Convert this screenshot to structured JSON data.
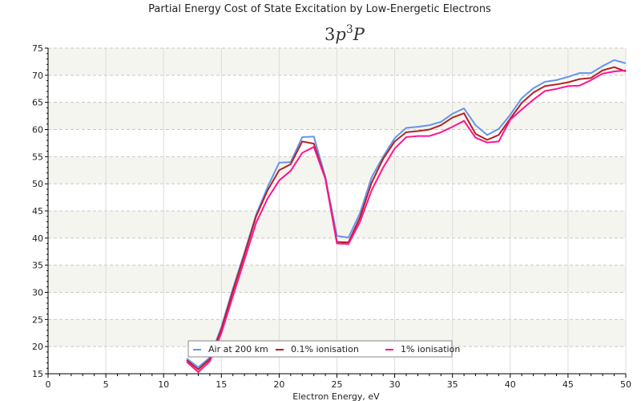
{
  "chart_data": {
    "type": "line",
    "title": "Partial Energy Cost of State Excitation by Low-Energetic Electrons",
    "subtitle": {
      "prefix": "3p",
      "superscript": "3",
      "suffix": "P"
    },
    "xlabel": "Electron Energy, eV",
    "ylabel": "",
    "xlim": [
      0,
      50
    ],
    "ylim": [
      15,
      75
    ],
    "xticks": [
      0,
      5,
      10,
      15,
      20,
      25,
      30,
      35,
      40,
      45,
      50
    ],
    "yticks": [
      15,
      20,
      25,
      30,
      35,
      40,
      45,
      50,
      55,
      60,
      65,
      70,
      75
    ],
    "grid": true,
    "legend_position": "bottom-center",
    "x": [
      12,
      13,
      14,
      15,
      16,
      17,
      18,
      19,
      20,
      21,
      22,
      23,
      24,
      25,
      26,
      27,
      28,
      29,
      30,
      31,
      32,
      33,
      34,
      35,
      36,
      37,
      38,
      39,
      40,
      41,
      42,
      43,
      44,
      45,
      46,
      47,
      48,
      49,
      50
    ],
    "series": [
      {
        "name": "Air at 200 km",
        "color": "#6495ed",
        "values": [
          17.8,
          16.2,
          18.0,
          23.6,
          30.7,
          37.3,
          44.3,
          49.4,
          53.9,
          54.0,
          58.6,
          58.7,
          51.2,
          40.4,
          40.1,
          44.6,
          51.2,
          55.0,
          58.4,
          60.3,
          60.5,
          60.8,
          61.4,
          62.9,
          63.9,
          60.8,
          59.0,
          60.1,
          62.7,
          65.8,
          67.6,
          68.8,
          69.1,
          69.7,
          70.4,
          70.4,
          71.7,
          72.8,
          72.2
        ]
      },
      {
        "name": "0.1% ionisation",
        "color": "#b22222",
        "values": [
          17.5,
          15.8,
          17.7,
          23.2,
          30.3,
          37.0,
          44.0,
          48.8,
          52.5,
          53.6,
          57.8,
          57.4,
          51.0,
          39.3,
          39.2,
          43.8,
          50.2,
          54.6,
          57.8,
          59.5,
          59.7,
          60.0,
          60.8,
          62.2,
          63.0,
          59.2,
          58.1,
          59.0,
          62.0,
          64.9,
          66.8,
          68.0,
          68.3,
          68.7,
          69.3,
          69.5,
          70.9,
          71.5,
          70.7
        ]
      },
      {
        "name": "1% ionisation",
        "color": "#ff1493",
        "values": [
          17.2,
          15.3,
          17.3,
          22.5,
          29.3,
          36.0,
          42.8,
          47.3,
          50.6,
          52.4,
          55.7,
          56.8,
          50.9,
          39.0,
          38.9,
          43.0,
          48.8,
          53.0,
          56.5,
          58.6,
          58.8,
          58.8,
          59.5,
          60.5,
          61.6,
          58.5,
          57.6,
          57.8,
          61.8,
          63.7,
          65.5,
          67.1,
          67.5,
          68.0,
          68.1,
          69.1,
          70.3,
          70.7,
          70.9
        ]
      }
    ]
  }
}
